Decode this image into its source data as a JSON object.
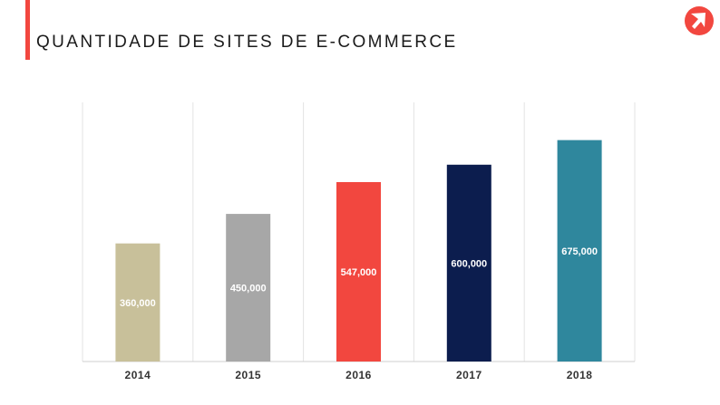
{
  "header": {
    "title": "QUANTIDADE DE SITES DE E-COMMERCE"
  },
  "logo": {
    "icon": "arrow-cursor-icon",
    "color": "#f2473f"
  },
  "colors": {
    "accent": "#f2473f",
    "gridline": "#e3e3e3",
    "axis": "#cfcfcf"
  },
  "chart_data": {
    "type": "bar",
    "title": "QUANTIDADE DE SITES DE E-COMMERCE",
    "categories": [
      "2014",
      "2015",
      "2016",
      "2017",
      "2018"
    ],
    "values": [
      360000,
      450000,
      547000,
      600000,
      675000
    ],
    "value_labels": [
      "360,000",
      "450,000",
      "547,000",
      "600,000",
      "675,000"
    ],
    "bar_colors": [
      "#c8c09a",
      "#a7a7a7",
      "#f2473f",
      "#0c1d4e",
      "#2f879d"
    ],
    "xlabel": "",
    "ylabel": "",
    "ylim": [
      0,
      790000
    ],
    "grid": "vertical-separators",
    "legend": "none"
  }
}
